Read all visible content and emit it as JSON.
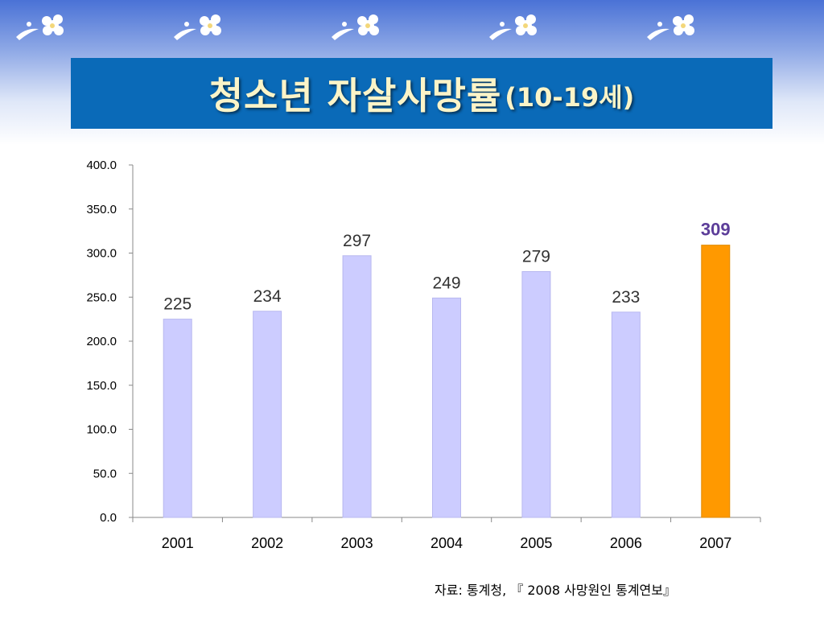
{
  "title": {
    "main": "청소년 자살사망률",
    "sub": "(10-19세)"
  },
  "source": "자료: 통계청, 『 2008 사망원인 통계연보』",
  "colors": {
    "banner": "#0a6ab8",
    "bar": "#ccccff",
    "highlight_bar": "#ff9900",
    "highlight_label": "#5c3d99",
    "title_text": "#fbf4c8"
  },
  "chart_data": {
    "type": "bar",
    "categories": [
      "2001",
      "2002",
      "2003",
      "2004",
      "2005",
      "2006",
      "2007"
    ],
    "values": [
      225,
      234,
      297,
      249,
      279,
      233,
      309
    ],
    "data_labels": [
      "225",
      "234",
      "297",
      "249",
      "279",
      "233",
      "309"
    ],
    "highlight_index": 6,
    "ylim": [
      0,
      400
    ],
    "yticks": [
      "0.0",
      "50.0",
      "100.0",
      "150.0",
      "200.0",
      "250.0",
      "300.0",
      "350.0",
      "400.0"
    ],
    "grid": false,
    "xlabel": "",
    "ylabel": ""
  }
}
